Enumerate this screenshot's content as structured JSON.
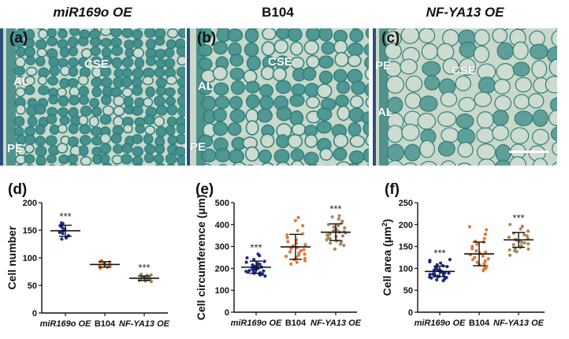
{
  "micrographs": [
    {
      "title": "miR169o OE",
      "panel": "(a)",
      "labels": [
        "AL",
        "CSE",
        "PE"
      ],
      "tone": "#3f8e8c"
    },
    {
      "title": "B104",
      "panel": "(b)",
      "labels": [
        "AL",
        "CSE",
        "PE"
      ],
      "tone": "#4a9592"
    },
    {
      "title": "NF-YA13 OE",
      "panel": "(c)",
      "labels": [
        "PE",
        "CSE",
        "AL"
      ],
      "tone": "#5a9c98"
    }
  ],
  "colors": {
    "series": [
      "#1a2a8c",
      "#e0783a",
      "#a8865a"
    ],
    "tissue_bg": "#c9d8c9",
    "tissue_cell": "#2e807e"
  },
  "chart_data": [
    {
      "type": "scatter",
      "panel": "(d)",
      "title": "",
      "ylabel": "Cell number",
      "ylim": [
        0,
        200
      ],
      "yticks": [
        "0",
        "50",
        "100",
        "150",
        "200"
      ],
      "categories": [
        "miR169o OE",
        "B104",
        "NF-YA13 OE"
      ],
      "mean": [
        149,
        88,
        63
      ],
      "sd": [
        10,
        5,
        4
      ],
      "significance": [
        "***",
        "",
        "***"
      ],
      "points": [
        [
          163,
          162,
          158,
          155,
          152,
          150,
          148,
          146,
          144,
          140,
          136,
          134
        ],
        [
          95,
          93,
          92,
          90,
          89,
          88,
          87,
          86,
          85,
          83,
          81
        ],
        [
          70,
          69,
          68,
          67,
          66,
          65,
          64,
          63,
          62,
          62,
          61,
          60,
          59,
          58,
          57
        ]
      ]
    },
    {
      "type": "scatter",
      "panel": "(e)",
      "title": "",
      "ylabel": "Cell circumference (μm)",
      "ylim": [
        0,
        500
      ],
      "yticks": [
        "0",
        "100",
        "200",
        "300",
        "400",
        "500"
      ],
      "categories": [
        "miR169o OE",
        "B104",
        "NF-YA13 OE"
      ],
      "mean": [
        205,
        298,
        365
      ],
      "sd": [
        28,
        57,
        38
      ],
      "significance": [
        "***",
        "",
        "***"
      ],
      "points": [
        [
          265,
          258,
          248,
          240,
          232,
          228,
          222,
          218,
          215,
          212,
          210,
          208,
          206,
          204,
          202,
          200,
          198,
          196,
          194,
          192,
          190,
          188,
          186,
          184,
          182,
          180,
          178,
          176,
          174,
          170,
          165
        ],
        [
          432,
          418,
          395,
          372,
          358,
          352,
          340,
          330,
          322,
          315,
          308,
          302,
          298,
          295,
          290,
          285,
          280,
          275,
          270,
          265,
          260,
          255,
          250,
          245,
          240,
          235,
          228,
          220
        ],
        [
          440,
          435,
          425,
          415,
          408,
          400,
          395,
          390,
          385,
          380,
          375,
          372,
          368,
          365,
          362,
          358,
          355,
          352,
          348,
          345,
          340,
          335,
          330,
          325,
          320,
          315,
          310,
          305,
          288
        ]
      ]
    },
    {
      "type": "scatter",
      "panel": "(f)",
      "title": "",
      "ylabel": "Cell area (μm²)",
      "ylim": [
        0,
        250
      ],
      "yticks": [
        "0",
        "50",
        "100",
        "150",
        "200",
        "250"
      ],
      "categories": [
        "miR169o OE",
        "B104",
        "NF-YA13 OE"
      ],
      "mean": [
        93,
        133,
        165
      ],
      "sd": [
        12,
        27,
        17
      ],
      "significance": [
        "***",
        "",
        "***"
      ],
      "points": [
        [
          120,
          118,
          115,
          112,
          108,
          106,
          104,
          102,
          100,
          98,
          96,
          95,
          94,
          93,
          92,
          91,
          90,
          89,
          88,
          87,
          86,
          85,
          84,
          83,
          82,
          81,
          80,
          79,
          78,
          76,
          74,
          72
        ],
        [
          195,
          188,
          178,
          168,
          162,
          160,
          155,
          150,
          145,
          140,
          137,
          134,
          131,
          128,
          125,
          122,
          120,
          117,
          114,
          111,
          108,
          105,
          102,
          100,
          98,
          95
        ],
        [
          200,
          196,
          190,
          185,
          180,
          177,
          174,
          171,
          168,
          166,
          164,
          162,
          160,
          158,
          156,
          154,
          152,
          150,
          148,
          146,
          144,
          142,
          140,
          138,
          130
        ]
      ]
    }
  ]
}
